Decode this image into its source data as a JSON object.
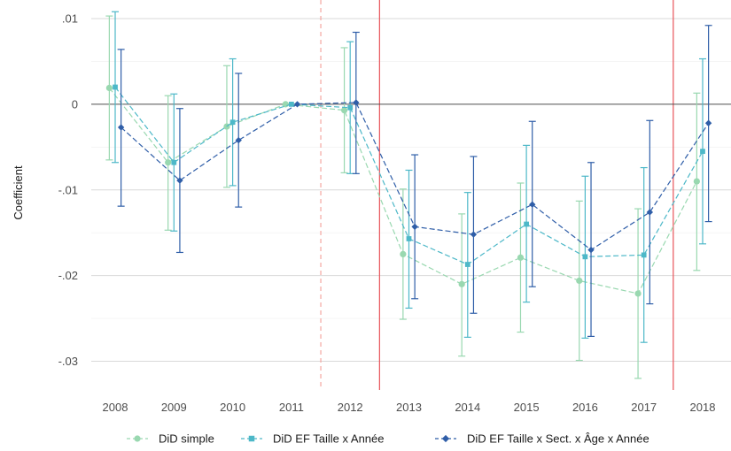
{
  "chart_data": {
    "type": "line",
    "title": "",
    "xlabel": "",
    "ylabel": "Coefficient",
    "x": [
      2008,
      2009,
      2010,
      2011,
      2012,
      2013,
      2014,
      2015,
      2016,
      2017,
      2018
    ],
    "x_tick_labels": [
      "2008",
      "2009",
      "2010",
      "2011",
      "2012",
      "2013",
      "2014",
      "2015",
      "2016",
      "2017",
      "2018"
    ],
    "ylim": [
      -0.0335,
      0.0115
    ],
    "y_ticks": [
      0.01,
      0,
      -0.01,
      -0.02,
      -0.03
    ],
    "y_tick_labels": [
      ".01",
      "0",
      "-.01",
      "-.02",
      "-.03"
    ],
    "grid": "horizontal",
    "zero_line": true,
    "reference_lines": [
      {
        "x": 2011.5,
        "style": "dashed",
        "color": "#f4a6a0"
      },
      {
        "x": 2012.5,
        "style": "solid",
        "color": "#e8545a"
      },
      {
        "x": 2017.5,
        "style": "solid",
        "color": "#e8545a"
      }
    ],
    "legend_position": "bottom",
    "series": [
      {
        "name": "DiD simple",
        "color": "#99d8b0",
        "marker": "circle",
        "x_offset": -0.1,
        "values": [
          0.0019,
          -0.0068,
          -0.0026,
          0.0,
          -0.0007,
          -0.0175,
          -0.021,
          -0.0179,
          -0.0206,
          -0.0221,
          -0.009
        ],
        "ci_low": [
          -0.0065,
          -0.0147,
          -0.0097,
          0.0,
          -0.008,
          -0.0251,
          -0.0294,
          -0.0266,
          -0.0299,
          -0.032,
          -0.0194
        ],
        "ci_high": [
          0.0103,
          0.001,
          0.0045,
          0.0,
          0.0066,
          -0.0099,
          -0.0128,
          -0.0092,
          -0.0113,
          -0.0122,
          0.0013
        ]
      },
      {
        "name": "DiD EF Taille x Année",
        "color": "#4db8c8",
        "marker": "square",
        "x_offset": 0.0,
        "values": [
          0.002,
          -0.0068,
          -0.0021,
          0.0,
          -0.0004,
          -0.0157,
          -0.0187,
          -0.014,
          -0.0178,
          -0.0176,
          -0.0055
        ],
        "ci_low": [
          -0.0068,
          -0.0148,
          -0.0095,
          0.0,
          -0.0081,
          -0.0238,
          -0.0272,
          -0.0231,
          -0.0273,
          -0.0278,
          -0.0163
        ],
        "ci_high": [
          0.0108,
          0.0012,
          0.0053,
          0.0,
          0.0073,
          -0.0077,
          -0.0103,
          -0.0048,
          -0.0084,
          -0.0074,
          0.0053
        ]
      },
      {
        "name": "DiD EF Taille x Sect. x Âge x Année",
        "color": "#2f5ea8",
        "marker": "diamond",
        "x_offset": 0.1,
        "values": [
          -0.0027,
          -0.0089,
          -0.0042,
          0.0,
          0.0002,
          -0.0143,
          -0.0152,
          -0.0117,
          -0.017,
          -0.0126,
          -0.0022
        ],
        "ci_low": [
          -0.0119,
          -0.0173,
          -0.012,
          0.0,
          -0.0081,
          -0.0227,
          -0.0244,
          -0.0213,
          -0.0271,
          -0.0233,
          -0.0137
        ],
        "ci_high": [
          0.0064,
          -0.0005,
          0.0036,
          0.0,
          0.0084,
          -0.0059,
          -0.0061,
          -0.002,
          -0.0068,
          -0.0019,
          0.0092
        ]
      }
    ]
  }
}
